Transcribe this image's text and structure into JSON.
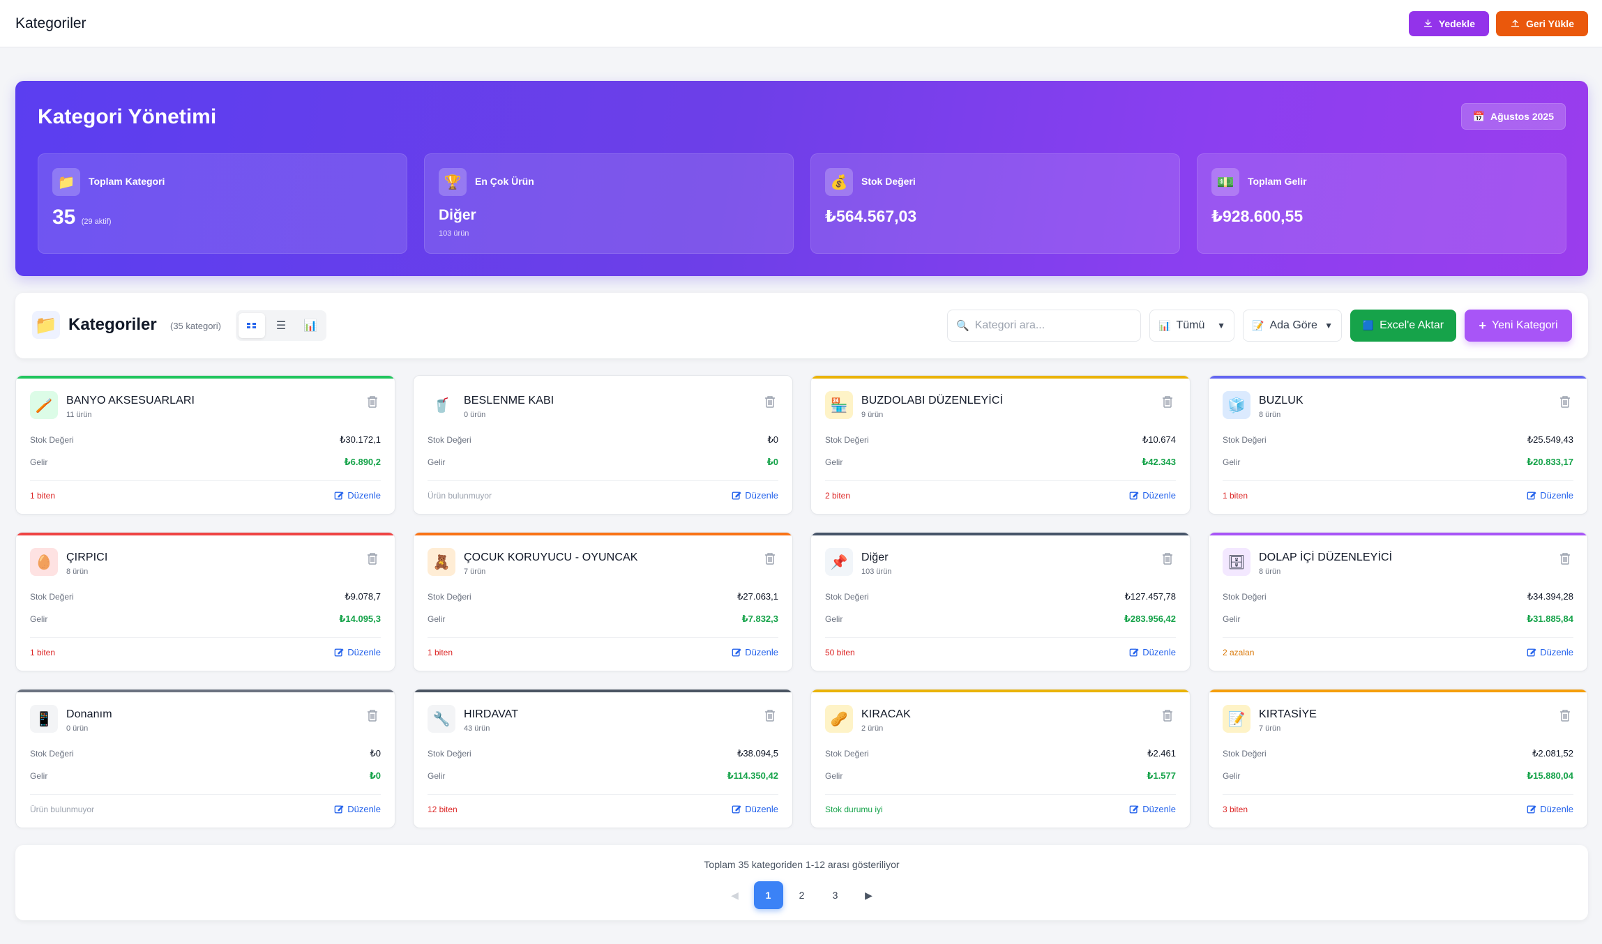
{
  "topbar": {
    "title": "Kategoriler",
    "backup_label": "Yedekle",
    "restore_label": "Geri Yükle"
  },
  "hero": {
    "title": "Kategori Yönetimi",
    "date_label": "Ağustos 2025",
    "stats": [
      {
        "label": "Toplam Kategori",
        "value": "35",
        "sub": "(29 aktif)",
        "icon": "folder-icon"
      },
      {
        "label": "En Çok Ürün",
        "value": "Diğer",
        "sub": "103 ürün",
        "icon": "trophy-icon"
      },
      {
        "label": "Stok Değeri",
        "value": "₺564.567,03",
        "sub": "",
        "icon": "money-bag-icon"
      },
      {
        "label": "Toplam Gelir",
        "value": "₺928.600,55",
        "sub": "",
        "icon": "cash-icon"
      }
    ]
  },
  "toolbar": {
    "title": "Kategoriler",
    "count": "(35 kategori)",
    "search_placeholder": "Kategori ara...",
    "filter_value": "Tümü",
    "sort_value": "Ada Göre",
    "excel_label": "Excel'e Aktar",
    "new_label": "Yeni Kategori"
  },
  "labels": {
    "stock": "Stok Değeri",
    "income": "Gelir",
    "edit": "Düzenle"
  },
  "colors": {
    "danger": "#dc2626",
    "warning": "#d97706",
    "success": "#16a34a",
    "muted": "#9ca3af"
  },
  "categories": [
    {
      "name": "BANYO AKSESUARLARI",
      "count": "11 ürün",
      "stock": "₺30.172,1",
      "income": "₺6.890,2",
      "status": "1 biten",
      "status_type": "danger",
      "bar": "#22c55e",
      "icon_bg": "#dcfce7",
      "icon": "🪥"
    },
    {
      "name": "BESLENME KABI",
      "count": "0 ürün",
      "stock": "₺0",
      "income": "₺0",
      "status": "Ürün bulunmuyor",
      "status_type": "muted",
      "bar": "#ffffff",
      "icon_bg": "#ffffff",
      "icon": "🥤"
    },
    {
      "name": "BUZDOLABI DÜZENLEYİCİ",
      "count": "9 ürün",
      "stock": "₺10.674",
      "income": "₺42.343",
      "status": "2 biten",
      "status_type": "danger",
      "bar": "#eab308",
      "icon_bg": "#fef3c7",
      "icon": "🏪"
    },
    {
      "name": "BUZLUK",
      "count": "8 ürün",
      "stock": "₺25.549,43",
      "income": "₺20.833,17",
      "status": "1 biten",
      "status_type": "danger",
      "bar": "#6366f1",
      "icon_bg": "#dbeafe",
      "icon": "🧊"
    },
    {
      "name": "ÇIRPICI",
      "count": "8 ürün",
      "stock": "₺9.078,7",
      "income": "₺14.095,3",
      "status": "1 biten",
      "status_type": "danger",
      "bar": "#ef4444",
      "icon_bg": "#fee2e2",
      "icon": "🥚"
    },
    {
      "name": "ÇOCUK KORUYUCU - OYUNCAK",
      "count": "7 ürün",
      "stock": "₺27.063,1",
      "income": "₺7.832,3",
      "status": "1 biten",
      "status_type": "danger",
      "bar": "#f97316",
      "icon_bg": "#ffedd5",
      "icon": "🧸"
    },
    {
      "name": "Diğer",
      "count": "103 ürün",
      "stock": "₺127.457,78",
      "income": "₺283.956,42",
      "status": "50 biten",
      "status_type": "danger",
      "bar": "#475569",
      "icon_bg": "#f1f5f9",
      "icon": "📌"
    },
    {
      "name": "DOLAP İÇİ DÜZENLEYİCİ",
      "count": "8 ürün",
      "stock": "₺34.394,28",
      "income": "₺31.885,84",
      "status": "2 azalan",
      "status_type": "warning",
      "bar": "#a855f7",
      "icon_bg": "#f3e8ff",
      "icon": "🗄"
    },
    {
      "name": "Donanım",
      "count": "0 ürün",
      "stock": "₺0",
      "income": "₺0",
      "status": "Ürün bulunmuyor",
      "status_type": "muted",
      "bar": "#6b7280",
      "icon_bg": "#f3f4f6",
      "icon": "📱"
    },
    {
      "name": "HIRDAVAT",
      "count": "43 ürün",
      "stock": "₺38.094,5",
      "income": "₺114.350,42",
      "status": "12 biten",
      "status_type": "danger",
      "bar": "#4b5563",
      "icon_bg": "#f3f4f6",
      "icon": "🔧"
    },
    {
      "name": "KIRACAK",
      "count": "2 ürün",
      "stock": "₺2.461",
      "income": "₺1.577",
      "status": "Stok durumu iyi",
      "status_type": "success",
      "bar": "#eab308",
      "icon_bg": "#fef3c7",
      "icon": "🥜"
    },
    {
      "name": "KIRTASİYE",
      "count": "7 ürün",
      "stock": "₺2.081,52",
      "income": "₺15.880,04",
      "status": "3 biten",
      "status_type": "danger",
      "bar": "#f59e0b",
      "icon_bg": "#fef3c7",
      "icon": "📝"
    }
  ],
  "pagination": {
    "info": "Toplam 35 kategoriden 1-12 arası gösteriliyor",
    "prev": "◀",
    "next": "▶",
    "pages": [
      "1",
      "2",
      "3"
    ],
    "current": "1"
  }
}
